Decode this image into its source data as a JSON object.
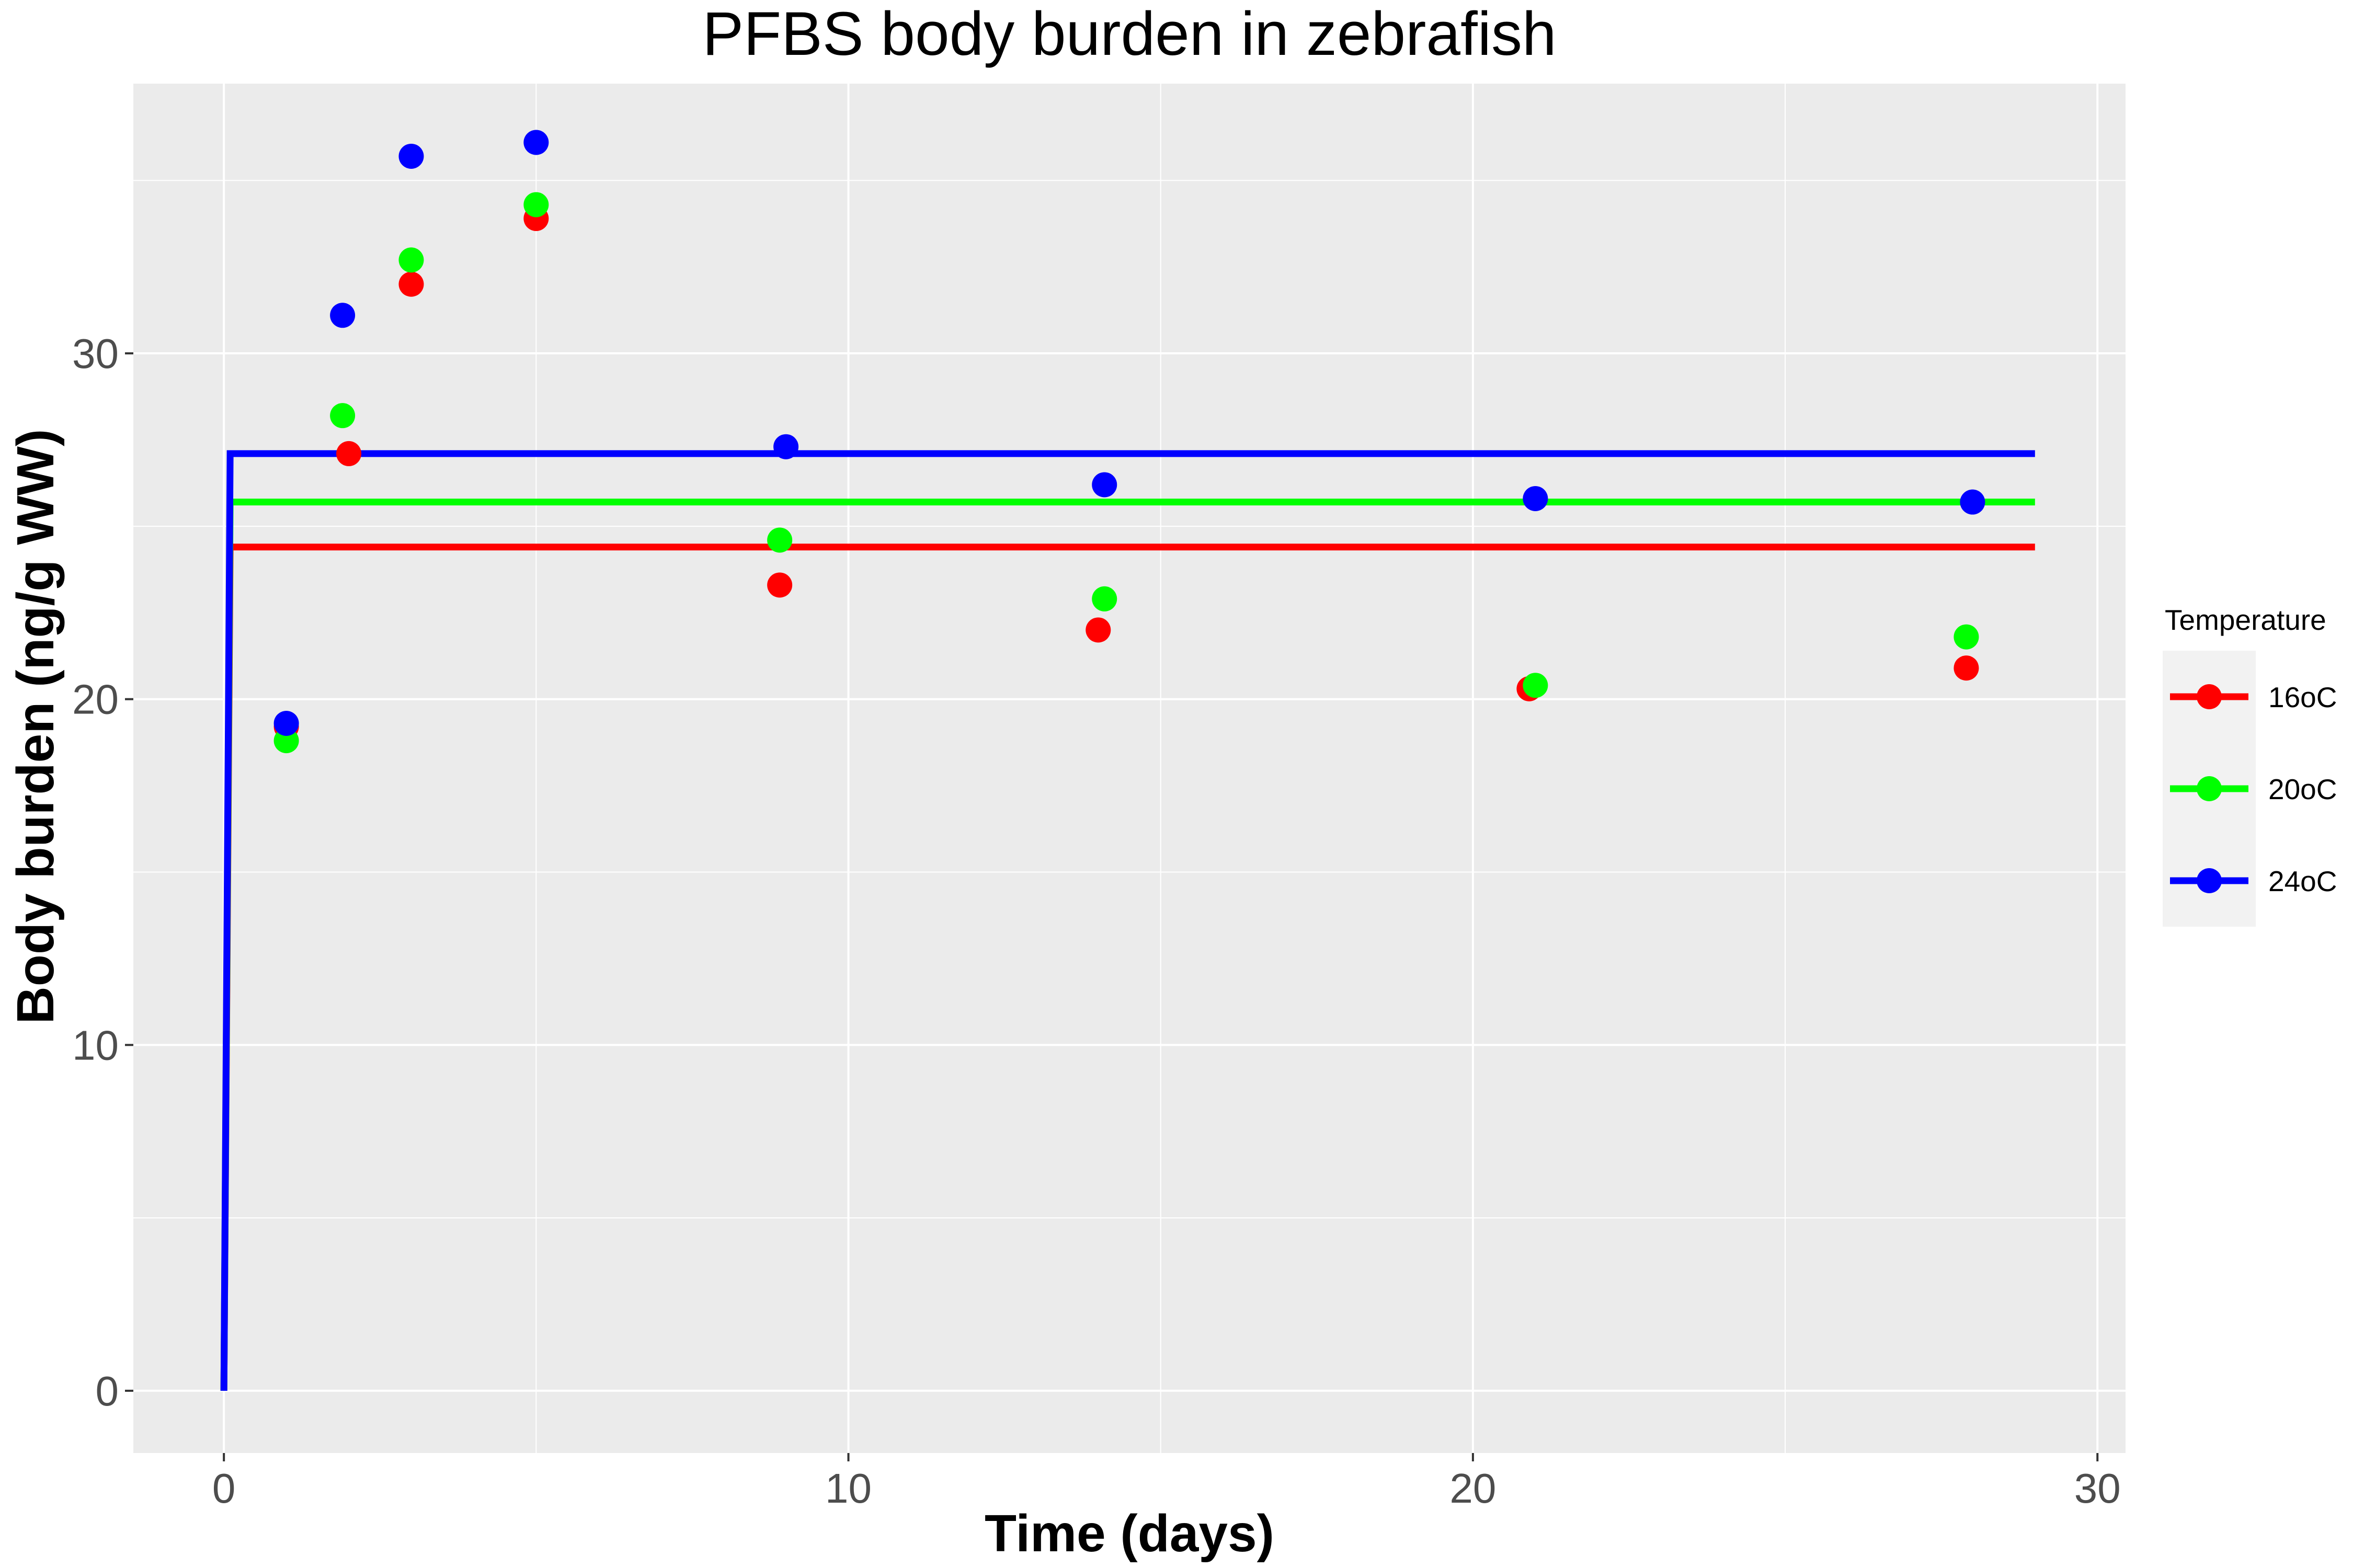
{
  "chart_data": {
    "type": "scatter",
    "title": "PFBS body burden in zebrafish",
    "xlabel": "Time (days)",
    "ylabel": "Body burden (ng/g WW)",
    "xlim": [
      -1.45,
      30.45
    ],
    "ylim": [
      -1.8,
      37.8
    ],
    "xticks": [
      0,
      10,
      20,
      30
    ],
    "yticks": [
      0,
      10,
      20,
      30
    ],
    "grid": true,
    "legend": {
      "title": "Temperature",
      "position": "right"
    },
    "series": [
      {
        "name": "16oC",
        "color": "#ff0000",
        "points": [
          [
            1,
            19.2
          ],
          [
            2,
            27.1
          ],
          [
            3,
            32.0
          ],
          [
            5,
            33.9
          ],
          [
            8.9,
            23.3
          ],
          [
            14,
            22.0
          ],
          [
            20.9,
            20.3
          ],
          [
            27.9,
            20.9
          ]
        ],
        "line": [
          [
            0,
            0
          ],
          [
            0.1,
            24.4
          ],
          [
            29,
            24.4
          ]
        ]
      },
      {
        "name": "20oC",
        "color": "#00ff00",
        "points": [
          [
            1,
            18.8
          ],
          [
            1.9,
            28.2
          ],
          [
            3,
            32.7
          ],
          [
            5,
            34.3
          ],
          [
            8.9,
            24.6
          ],
          [
            14.1,
            22.9
          ],
          [
            21,
            20.4
          ],
          [
            27.9,
            21.8
          ]
        ],
        "line": [
          [
            0,
            0
          ],
          [
            0.1,
            25.7
          ],
          [
            29,
            25.7
          ]
        ]
      },
      {
        "name": "24oC",
        "color": "#0000ff",
        "points": [
          [
            1,
            19.3
          ],
          [
            1.9,
            31.1
          ],
          [
            3,
            35.7
          ],
          [
            5,
            36.1
          ],
          [
            9,
            27.3
          ],
          [
            14.1,
            26.2
          ],
          [
            21,
            25.8
          ],
          [
            28,
            25.7
          ]
        ],
        "line": [
          [
            0,
            0
          ],
          [
            0.1,
            27.1
          ],
          [
            29,
            27.1
          ]
        ]
      }
    ]
  }
}
